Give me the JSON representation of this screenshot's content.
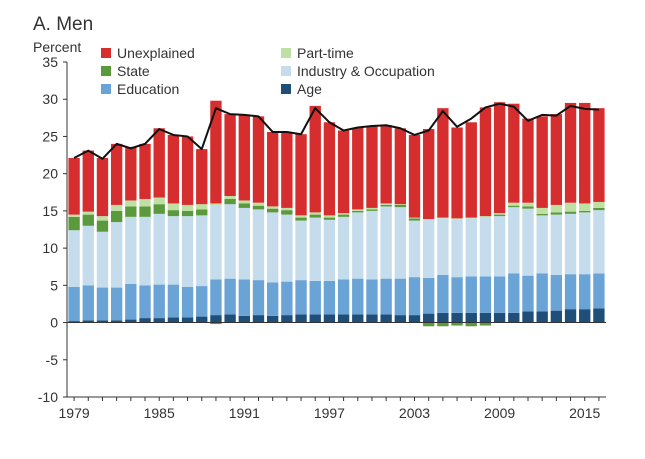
{
  "chart_data": {
    "type": "bar",
    "stacked": true,
    "title": "A. Men",
    "ylabel": "Percent",
    "xlabel": "",
    "ylim": [
      -10,
      35
    ],
    "yticks": [
      -10,
      -5,
      0,
      5,
      10,
      15,
      20,
      25,
      30,
      35
    ],
    "x": [
      1979,
      1980,
      1981,
      1982,
      1983,
      1984,
      1985,
      1986,
      1987,
      1988,
      1989,
      1990,
      1991,
      1992,
      1993,
      1994,
      1995,
      1996,
      1997,
      1998,
      1999,
      2000,
      2001,
      2002,
      2003,
      2004,
      2005,
      2006,
      2007,
      2008,
      2009,
      2010,
      2011,
      2012,
      2013,
      2014,
      2015,
      2016
    ],
    "xtick_labels": [
      "1979",
      "1985",
      "1991",
      "1997",
      "2003",
      "2009",
      "2015"
    ],
    "grid": false,
    "legend_position": "top-left",
    "legend": [
      {
        "label": "Unexplained",
        "color": "#d62e2e"
      },
      {
        "label": "Part-time",
        "color": "#bfe0a3"
      },
      {
        "label": "State",
        "color": "#5b9a3c"
      },
      {
        "label": "Industry & Occupation",
        "color": "#c5dcec"
      },
      {
        "label": "Education",
        "color": "#6aa3d5"
      },
      {
        "label": "Age",
        "color": "#1f4e79"
      }
    ],
    "series": [
      {
        "name": "Age",
        "color": "#1f4e79",
        "values": [
          0.2,
          0.3,
          0.3,
          0.3,
          0.4,
          0.6,
          0.6,
          0.7,
          0.7,
          0.8,
          1.0,
          1.1,
          0.9,
          1.0,
          0.9,
          1.0,
          1.1,
          1.1,
          1.1,
          1.1,
          1.1,
          1.1,
          1.1,
          1.0,
          1.0,
          1.2,
          1.3,
          1.3,
          1.3,
          1.3,
          1.3,
          1.3,
          1.5,
          1.5,
          1.6,
          1.8,
          1.8,
          1.9
        ]
      },
      {
        "name": "Education",
        "color": "#6aa3d5",
        "values": [
          4.6,
          4.7,
          4.4,
          4.4,
          4.8,
          4.4,
          4.5,
          4.4,
          4.1,
          4.1,
          4.8,
          4.8,
          4.9,
          4.7,
          4.5,
          4.5,
          4.6,
          4.5,
          4.5,
          4.7,
          4.8,
          4.7,
          4.8,
          4.9,
          5.1,
          4.8,
          5.1,
          4.8,
          4.9,
          4.9,
          4.9,
          5.3,
          4.8,
          5.1,
          4.8,
          4.7,
          4.7,
          4.7
        ]
      },
      {
        "name": "Industry & Occupation",
        "color": "#c5dcec",
        "values": [
          7.6,
          8.0,
          7.5,
          8.8,
          9.0,
          9.2,
          9.5,
          9.2,
          9.5,
          9.5,
          9.9,
          10.0,
          9.6,
          9.5,
          9.4,
          9.0,
          8.0,
          8.5,
          8.2,
          8.4,
          8.9,
          9.2,
          9.7,
          9.6,
          7.6,
          7.8,
          7.6,
          7.8,
          7.8,
          7.9,
          8.1,
          8.9,
          9.0,
          7.8,
          8.1,
          8.1,
          8.3,
          8.5
        ]
      },
      {
        "name": "State",
        "color": "#5b9a3c",
        "values": [
          1.8,
          1.5,
          1.5,
          1.5,
          1.4,
          1.4,
          1.3,
          0.8,
          0.7,
          0.8,
          -0.2,
          0.7,
          0.6,
          0.5,
          0.5,
          0.6,
          0.4,
          0.4,
          0.3,
          0.3,
          0.2,
          0.2,
          0.2,
          0.3,
          0.3,
          -0.5,
          -0.5,
          -0.4,
          -0.5,
          -0.4,
          0.2,
          0.2,
          0.3,
          0.2,
          0.3,
          0.3,
          0.2,
          0.3
        ]
      },
      {
        "name": "Part-time",
        "color": "#bfe0a3",
        "values": [
          0.3,
          0.4,
          0.6,
          0.8,
          0.8,
          1.0,
          0.9,
          0.9,
          0.8,
          0.7,
          0.3,
          0.4,
          0.4,
          0.4,
          0.3,
          0.3,
          0.3,
          0.3,
          0.3,
          0.2,
          0.2,
          0.2,
          0.2,
          0.1,
          0.1,
          0.1,
          0.1,
          0.1,
          0.1,
          0.2,
          0.2,
          0.4,
          0.5,
          0.8,
          1.0,
          1.2,
          1.0,
          0.8
        ]
      },
      {
        "name": "Unexplained",
        "color": "#d62e2e",
        "values": [
          7.6,
          8.2,
          7.8,
          8.2,
          7.2,
          7.4,
          9.3,
          9.2,
          9.2,
          7.4,
          13.8,
          11.0,
          11.5,
          11.6,
          10.0,
          10.2,
          10.9,
          14.3,
          12.5,
          11.1,
          11.0,
          11.0,
          10.5,
          10.2,
          11.1,
          12.1,
          14.7,
          12.2,
          12.8,
          14.6,
          14.9,
          13.3,
          11.3,
          12.3,
          12.2,
          13.4,
          13.5,
          12.6
        ]
      }
    ],
    "total_line": {
      "color": "#111111",
      "values": [
        22.1,
        23.1,
        22.0,
        24.0,
        23.4,
        24.0,
        26.0,
        25.2,
        25.0,
        23.3,
        28.8,
        28.0,
        27.9,
        27.7,
        25.6,
        25.6,
        25.3,
        28.8,
        26.9,
        25.8,
        26.2,
        26.4,
        26.5,
        26.1,
        25.2,
        25.8,
        28.4,
        26.3,
        27.4,
        28.9,
        29.4,
        29.0,
        27.1,
        27.9,
        27.8,
        29.1,
        28.7,
        28.6
      ]
    }
  }
}
